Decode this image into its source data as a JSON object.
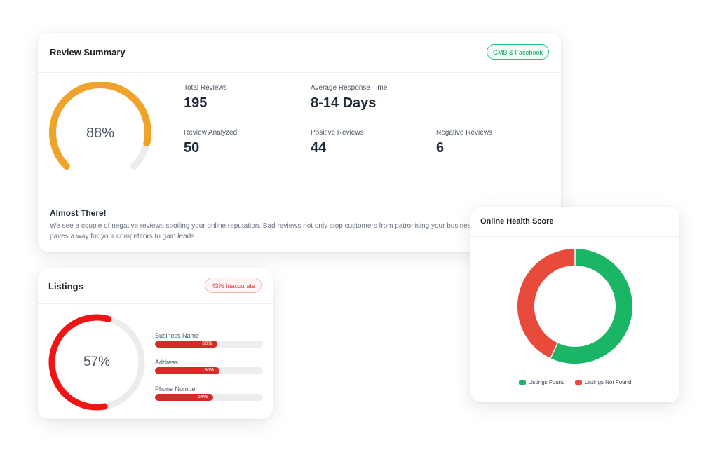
{
  "review_summary": {
    "title": "Review Summary",
    "badge": "GMB & Facebook",
    "gauge_label": "88%",
    "gauge_fraction": 0.88,
    "gauge_color": "#f0a32b",
    "stats": {
      "total_reviews": {
        "label": "Total Reviews",
        "value": "195"
      },
      "avg_response": {
        "label": "Average Response Time",
        "value": "8-14 Days"
      },
      "analyzed": {
        "label": "Review Analyzed",
        "value": "50"
      },
      "positive": {
        "label": "Positive Reviews",
        "value": "44"
      },
      "negative": {
        "label": "Negative Reviews",
        "value": "6"
      }
    },
    "notice_title": "Almost There!",
    "notice_line1": "We see a couple of negative reviews spoiling your online reputation. Bad reviews not only stop customers from patronising your business but also",
    "notice_line2": "paves a way for your competitors to gain leads."
  },
  "listings": {
    "title": "Listings",
    "badge": "43% Inaccurate",
    "gauge_label": "57%",
    "gauge_fraction": 0.57,
    "gauge_color": "#f01414",
    "bars": [
      {
        "label": "Business Name",
        "pct_label": "58%",
        "value": 58
      },
      {
        "label": "Address",
        "pct_label": "60%",
        "value": 60
      },
      {
        "label": "Phone Number",
        "pct_label": "54%",
        "value": 54
      }
    ]
  },
  "health": {
    "title": "Online Health Score",
    "chart_data": {
      "type": "pie",
      "categories": [
        "Listings Found",
        "Listings Not Found"
      ],
      "values": [
        57,
        43
      ],
      "colors": [
        "#1bb566",
        "#e84a3c"
      ]
    }
  },
  "colors": {
    "track": "#ececec",
    "green": "#1bb566",
    "red": "#e84a3c"
  }
}
